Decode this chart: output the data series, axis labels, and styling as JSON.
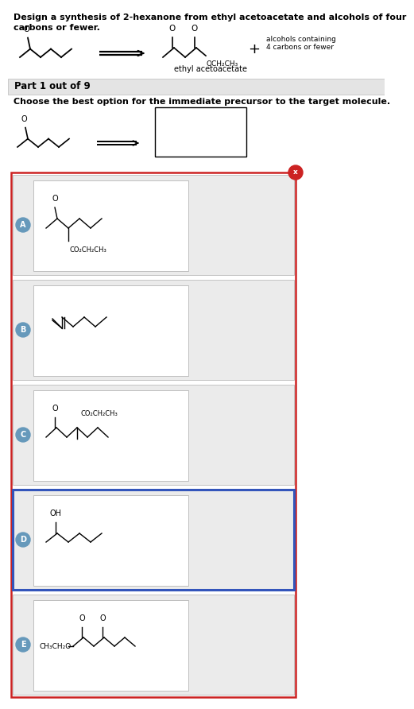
{
  "title_text": "Design a synthesis of 2-hexanone from ethyl acetoacetate and alcohols of four\ncarbons or fewer.",
  "part_text": "Part 1 out of 9",
  "question_text": "Choose the best option for the immediate precursor to the target molecule.",
  "background_color": "#ffffff",
  "panel_bg": "#ececec",
  "panel_border_red": "#cc2222",
  "panel_border_blue": "#3355bb",
  "label_bg_blue": "#6699bb",
  "selected_option": "D",
  "options": [
    "A",
    "B",
    "C",
    "D",
    "E"
  ]
}
